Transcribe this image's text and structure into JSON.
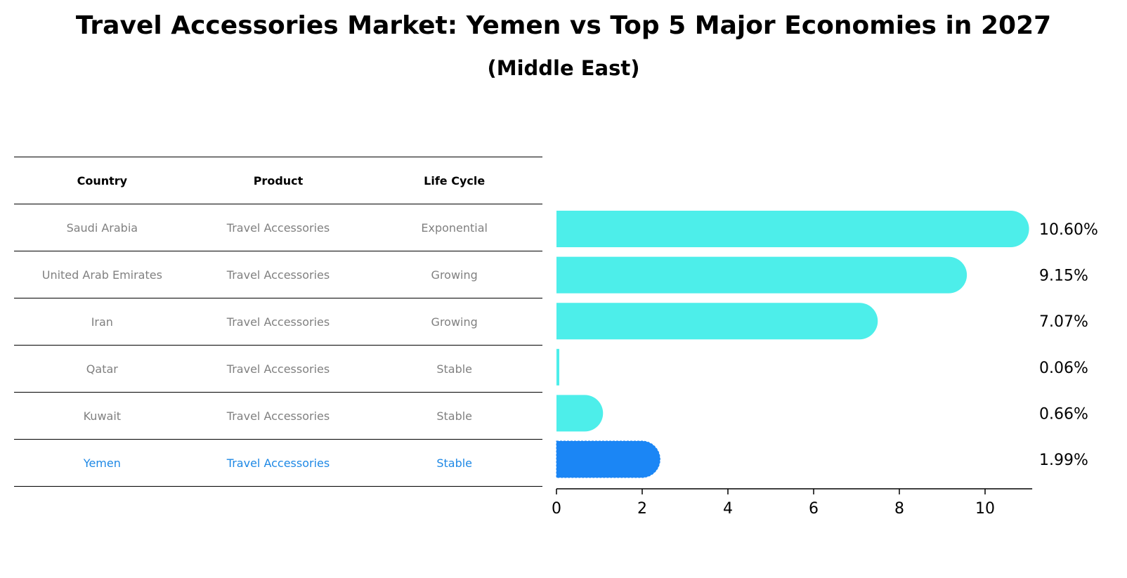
{
  "title": "Travel Accessories Market: Yemen vs Top 5 Major Economies in 2027",
  "subtitle": "(Middle East)",
  "table": {
    "headers": [
      "Country",
      "Product",
      "Life Cycle"
    ],
    "rows": [
      [
        "Saudi Arabia",
        "Travel Accessories",
        "Exponential"
      ],
      [
        "United Arab Emirates",
        "Travel Accessories",
        "Growing"
      ],
      [
        "Iran",
        "Travel Accessories",
        "Growing"
      ],
      [
        "Qatar",
        "Travel Accessories",
        "Stable"
      ],
      [
        "Kuwait",
        "Travel Accessories",
        "Stable"
      ],
      [
        "Yemen",
        "Travel Accessories",
        "Stable"
      ]
    ],
    "highlight_row": 5
  },
  "chart_data": {
    "type": "bar",
    "orientation": "horizontal",
    "categories": [
      "Saudi Arabia",
      "United Arab Emirates",
      "Iran",
      "Qatar",
      "Kuwait",
      "Yemen"
    ],
    "values": [
      10.6,
      9.15,
      7.07,
      0.06,
      0.66,
      1.99
    ],
    "value_labels": [
      "10.60%",
      "9.15%",
      "7.07%",
      "0.06%",
      "0.66%",
      "1.99%"
    ],
    "xlim": [
      0,
      11.1
    ],
    "xticks": [
      0,
      2,
      4,
      6,
      8,
      10
    ],
    "colors": {
      "default": "#4deeea",
      "highlight": "#1b86f5"
    },
    "highlight_index": 5
  }
}
